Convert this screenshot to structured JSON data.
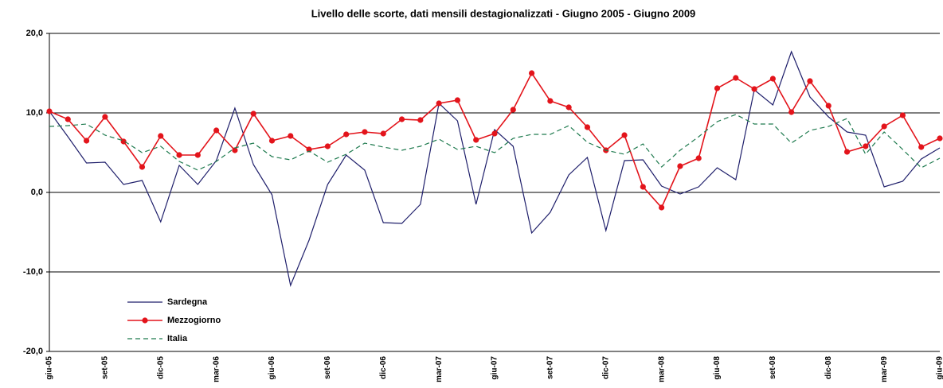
{
  "chart_data": {
    "type": "line",
    "title": "Livello delle scorte, dati mensili destagionalizzati - Giugno 2005 - Giugno 2009",
    "categories": [
      "giu-05",
      null,
      null,
      "set-05",
      null,
      null,
      "dic-05",
      null,
      null,
      "mar-06",
      null,
      null,
      "giu-06",
      null,
      null,
      "set-06",
      null,
      null,
      "dic-06",
      null,
      null,
      "mar-07",
      null,
      null,
      "giu-07",
      null,
      null,
      "set-07",
      null,
      null,
      "dic-07",
      null,
      null,
      "mar-08",
      null,
      null,
      "giu-08",
      null,
      null,
      "set-08",
      null,
      null,
      "dic-08",
      null,
      null,
      "mar-09",
      null,
      null,
      "giu-09"
    ],
    "series": [
      {
        "name": "Sardegna",
        "color": "#1f1f6b",
        "dashed": false,
        "markers": false,
        "values": [
          10.2,
          7.0,
          3.7,
          3.8,
          1.0,
          1.5,
          -3.7,
          3.4,
          1.0,
          4.0,
          10.6,
          3.5,
          -0.3,
          -11.7,
          -6.0,
          1.0,
          4.7,
          2.8,
          -3.8,
          -3.9,
          -1.5,
          11.2,
          9.0,
          -1.5,
          7.9,
          5.8,
          -5.1,
          -2.5,
          2.2,
          4.4,
          -4.8,
          4.0,
          4.1,
          0.8,
          -0.2,
          0.7,
          3.1,
          1.6,
          12.9,
          11.0,
          17.7,
          12.0,
          9.5,
          7.6,
          7.2,
          0.7,
          1.4,
          4.2,
          5.6
        ]
      },
      {
        "name": "Mezzogiorno",
        "color": "#e3141b",
        "dashed": false,
        "markers": true,
        "values": [
          10.2,
          9.2,
          6.5,
          9.5,
          6.4,
          3.2,
          7.1,
          4.7,
          4.7,
          7.8,
          5.3,
          9.9,
          6.5,
          7.1,
          5.4,
          5.8,
          7.3,
          7.6,
          7.4,
          9.2,
          9.1,
          11.2,
          11.6,
          6.6,
          7.4,
          10.4,
          15.0,
          11.5,
          10.7,
          8.2,
          5.3,
          7.2,
          0.7,
          -1.9,
          3.3,
          4.3,
          13.1,
          14.4,
          13.0,
          14.3,
          10.1,
          14.0,
          10.9,
          5.1,
          5.8,
          8.3,
          9.7,
          5.7,
          6.8
        ]
      },
      {
        "name": "Italia",
        "color": "#1e7a4e",
        "dashed": true,
        "markers": false,
        "values": [
          8.3,
          8.4,
          8.6,
          7.2,
          6.5,
          5.0,
          5.8,
          3.9,
          2.8,
          3.9,
          5.6,
          6.2,
          4.5,
          4.1,
          5.2,
          3.8,
          4.8,
          6.2,
          5.7,
          5.3,
          5.8,
          6.7,
          5.4,
          5.8,
          5.0,
          6.8,
          7.3,
          7.3,
          8.4,
          6.3,
          5.3,
          4.8,
          6.1,
          3.2,
          5.3,
          7.0,
          8.9,
          9.8,
          8.6,
          8.6,
          6.2,
          7.8,
          8.3,
          9.3,
          4.8,
          7.6,
          5.4,
          3.1,
          4.3
        ]
      }
    ],
    "ylim": [
      -20,
      20
    ],
    "yticks": [
      {
        "value": -20,
        "label": "-20,0"
      },
      {
        "value": -10,
        "label": "-10,0"
      },
      {
        "value": 0,
        "label": "0,0"
      },
      {
        "value": 10,
        "label": "10,0"
      },
      {
        "value": 20,
        "label": "20,0"
      }
    ],
    "grid": true
  }
}
